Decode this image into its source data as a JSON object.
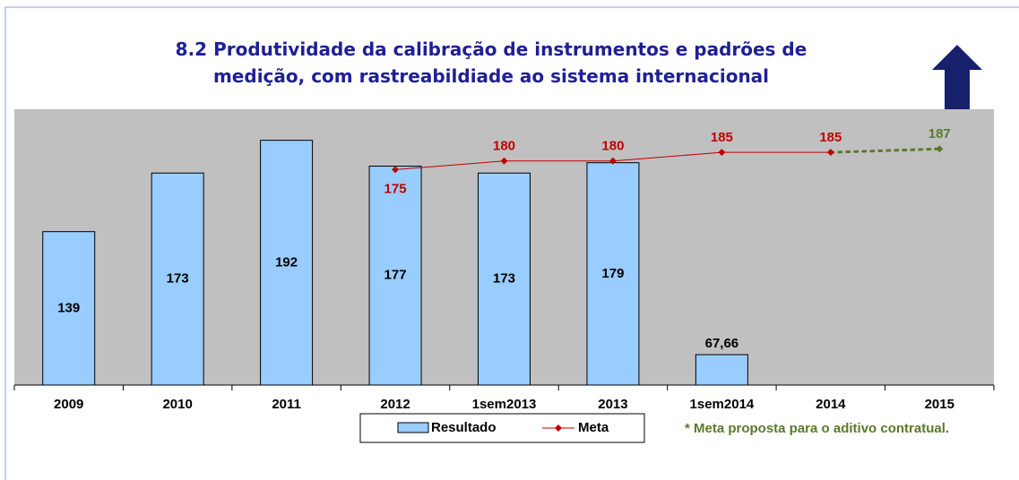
{
  "chart_data": {
    "type": "bar",
    "title": "8.2 Produtividade da calibração de instrumentos e padrões de\nmedição, com rastreabildiade  ao sistema internacional",
    "categories": [
      "2009",
      "2010",
      "2011",
      "2012",
      "1sem2013",
      "2013",
      "1sem2014",
      "2014",
      "2015"
    ],
    "ylim": [
      50,
      210
    ],
    "series": [
      {
        "name": "Resultado",
        "type": "bar",
        "color": "#99ccff",
        "values": [
          139,
          173,
          192,
          177,
          173,
          179,
          67.66,
          null,
          null
        ],
        "value_labels": [
          "139",
          "173",
          "192",
          "177",
          "173",
          "179",
          "67,66",
          null,
          null
        ]
      },
      {
        "name": "Meta",
        "type": "line",
        "color": "#c00000",
        "values": [
          null,
          null,
          null,
          175,
          180,
          180,
          185,
          185,
          187
        ],
        "line_styles": [
          null,
          null,
          null,
          "solid",
          "solid",
          "solid",
          "solid",
          "solid",
          "dotted"
        ],
        "point_colors": [
          null,
          null,
          null,
          "#c00000",
          "#c00000",
          "#c00000",
          "#c00000",
          "#c00000",
          "#5a7a2a"
        ]
      }
    ],
    "plot_background": "#c0c0c0",
    "annotation": "* Meta proposta para o aditivo contratual."
  }
}
